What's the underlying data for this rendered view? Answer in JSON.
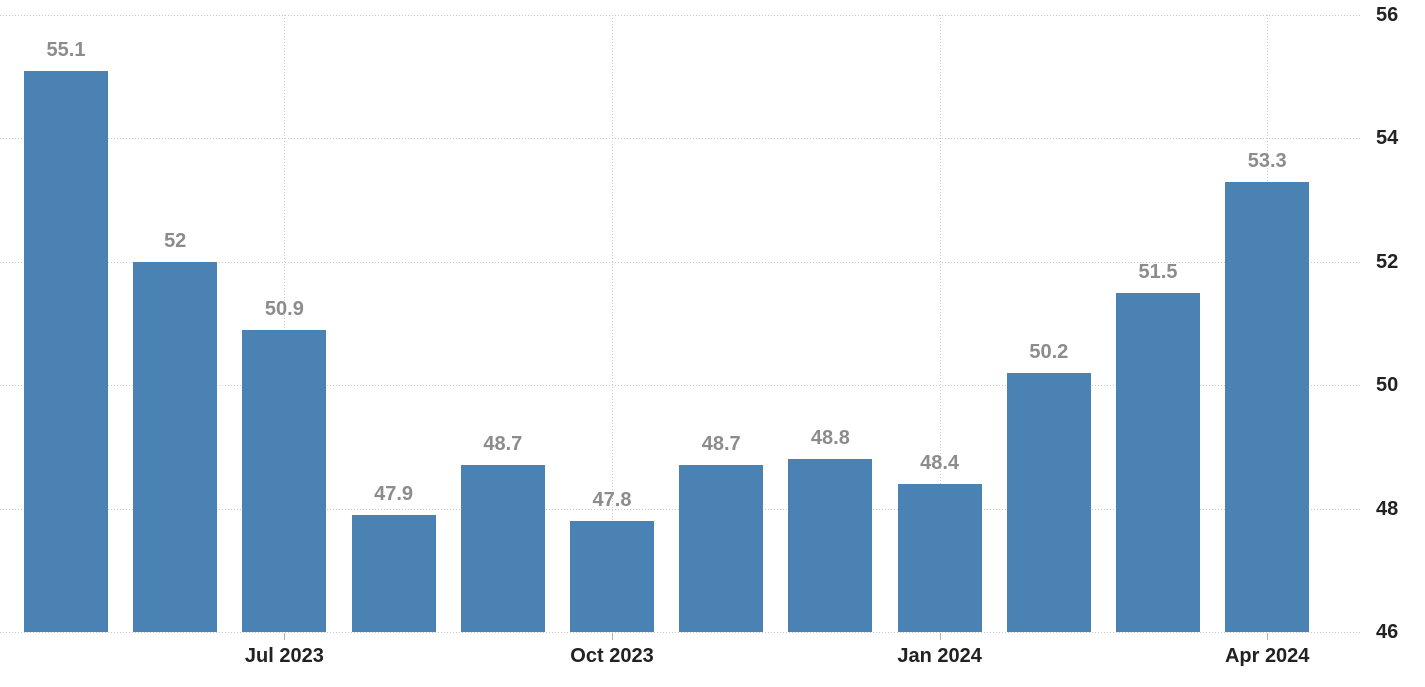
{
  "chart_data": {
    "type": "bar",
    "categories": [
      "",
      "",
      "Jul 2023",
      "",
      "",
      "Oct 2023",
      "",
      "",
      "Jan 2024",
      "",
      "",
      "Apr 2024"
    ],
    "values": [
      55.1,
      52,
      50.9,
      47.9,
      48.7,
      47.8,
      48.7,
      48.8,
      48.4,
      50.2,
      51.5,
      53.3
    ],
    "bar_labels": [
      "55.1",
      "52",
      "50.9",
      "47.9",
      "48.7",
      "47.8",
      "48.7",
      "48.8",
      "48.4",
      "50.2",
      "51.5",
      "53.3"
    ],
    "x_tick_labels": [
      "Jul 2023",
      "Oct 2023",
      "Jan 2024",
      "Apr 2024"
    ],
    "x_tick_category_indexes": [
      2,
      5,
      8,
      11
    ],
    "y_ticks": [
      46,
      48,
      50,
      52,
      54,
      56
    ],
    "ylim": [
      46,
      56
    ],
    "title": "",
    "xlabel": "",
    "ylabel": "",
    "legend": null,
    "grid": true,
    "y_axis_position": "right",
    "colors": {
      "bar": "#4a82b4",
      "grid": "#cccccc",
      "bar_label": "#8c8c8c",
      "axis_label": "#222222",
      "tick_mark": "#b5b5b5",
      "background": "#ffffff"
    }
  }
}
